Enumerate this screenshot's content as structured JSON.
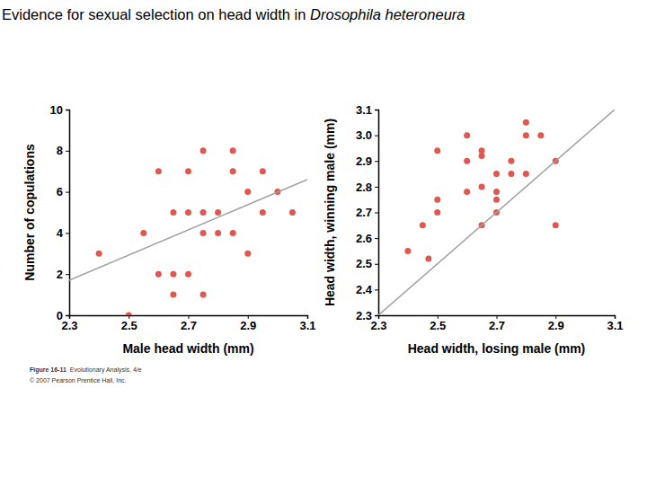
{
  "header": {
    "title": "Evidence for sexual selection on head width in ",
    "species": "Drosophila heteroneura"
  },
  "caption": {
    "figure": "Figure 16-11",
    "book": "Evolutionary Analysis, 4/e",
    "copyright": "© 2007 Pearson Prentice Hall, Inc."
  },
  "chart_data": [
    {
      "type": "scatter",
      "x_label": "Male head width (mm)",
      "y_label": "Number of copulations",
      "xlim": [
        2.3,
        3.1
      ],
      "xticks": [
        2.3,
        2.5,
        2.7,
        2.9,
        3.1
      ],
      "ylim": [
        0,
        10
      ],
      "yticks": [
        0,
        2,
        4,
        6,
        8,
        10
      ],
      "series": [
        {
          "type": "scatter",
          "marker": "circle",
          "color": "#e0574f",
          "x": [
            2.4,
            2.5,
            2.55,
            2.6,
            2.6,
            2.65,
            2.7,
            2.65,
            2.65,
            2.7,
            2.7,
            2.75,
            2.75,
            2.75,
            2.75,
            2.8,
            2.8,
            2.85,
            2.85,
            2.85,
            2.9,
            2.9,
            2.95,
            2.95,
            3.0,
            3.05
          ],
          "values": [
            3,
            0,
            4,
            7,
            2,
            2,
            2,
            5,
            1,
            7,
            5,
            8,
            5,
            4,
            1,
            5,
            4,
            8,
            7,
            4,
            3,
            6,
            7,
            5,
            6,
            5
          ]
        },
        {
          "type": "line",
          "line_style": "solid",
          "color": "#a0a0a0",
          "x": [
            2.3,
            3.1
          ],
          "values": [
            1.7,
            6.6
          ]
        }
      ]
    },
    {
      "type": "scatter",
      "x_label": "Head width, losing male (mm)",
      "y_label": "Head width, winning male (mm)",
      "xlim": [
        2.3,
        3.1
      ],
      "xticks": [
        2.3,
        2.5,
        2.7,
        2.9,
        3.1
      ],
      "ylim": [
        2.3,
        3.1
      ],
      "yticks": [
        2.3,
        2.4,
        2.5,
        2.6,
        2.7,
        2.8,
        2.9,
        {
          "value": 3,
          "label": "3.0"
        },
        3.1
      ],
      "series": [
        {
          "type": "scatter",
          "marker": "circle",
          "color": "#e0574f",
          "x": [
            2.4,
            2.45,
            2.47,
            2.5,
            2.5,
            2.5,
            2.6,
            2.6,
            2.6,
            2.65,
            2.65,
            2.65,
            2.65,
            2.7,
            2.7,
            2.7,
            2.7,
            2.75,
            2.75,
            2.8,
            2.8,
            2.8,
            2.85,
            2.9,
            2.9
          ],
          "values": [
            2.55,
            2.65,
            2.52,
            2.94,
            2.75,
            2.7,
            3.0,
            2.9,
            2.78,
            2.94,
            2.92,
            2.8,
            2.65,
            2.85,
            2.78,
            2.75,
            2.7,
            2.9,
            2.85,
            3.05,
            3.0,
            2.85,
            3.0,
            2.9,
            2.65
          ]
        },
        {
          "type": "line",
          "line_style": "solid",
          "color": "#a0a0a0",
          "x": [
            2.3,
            3.1
          ],
          "values": [
            2.3,
            3.1
          ]
        }
      ]
    }
  ]
}
